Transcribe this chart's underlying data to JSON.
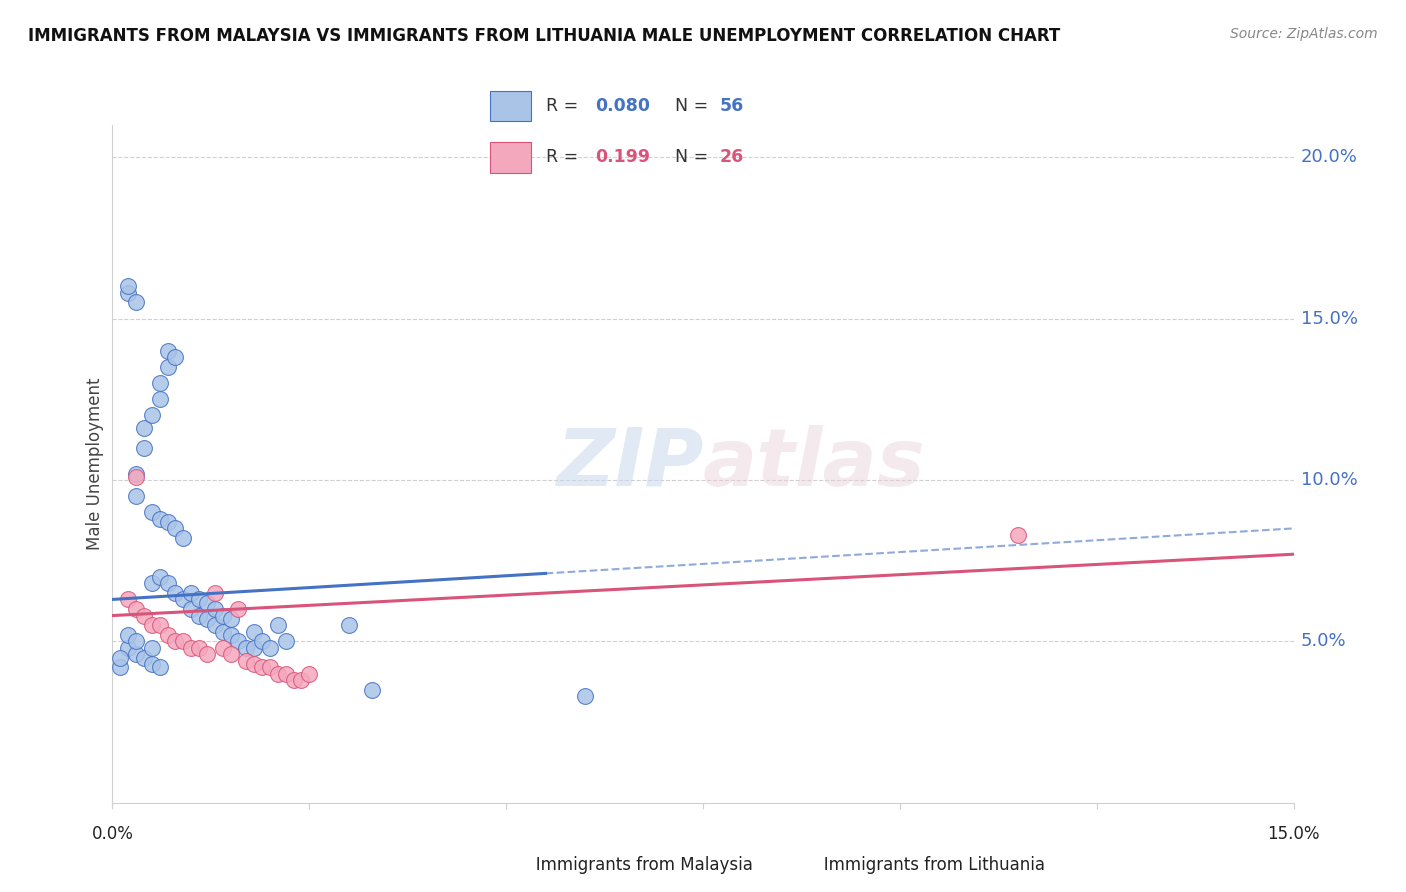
{
  "title": "IMMIGRANTS FROM MALAYSIA VS IMMIGRANTS FROM LITHUANIA MALE UNEMPLOYMENT CORRELATION CHART",
  "source": "Source: ZipAtlas.com",
  "ylabel": "Male Unemployment",
  "xlim": [
    0.0,
    0.15
  ],
  "ylim": [
    0.0,
    0.21
  ],
  "watermark": "ZIPatlas",
  "malaysia_R": "0.080",
  "malaysia_N": "56",
  "lithuania_R": "0.199",
  "lithuania_N": "26",
  "malaysia_color": "#aac4e8",
  "malaysia_line_color": "#4472c4",
  "lithuania_color": "#f4a8be",
  "lithuania_line_color": "#d9547a",
  "malaysia_scatter_x": [
    0.005,
    0.006,
    0.007,
    0.008,
    0.009,
    0.01,
    0.01,
    0.011,
    0.011,
    0.012,
    0.012,
    0.013,
    0.013,
    0.014,
    0.014,
    0.015,
    0.015,
    0.016,
    0.017,
    0.018,
    0.018,
    0.019,
    0.02,
    0.021,
    0.022,
    0.005,
    0.006,
    0.007,
    0.008,
    0.009,
    0.003,
    0.003,
    0.004,
    0.004,
    0.005,
    0.006,
    0.006,
    0.007,
    0.007,
    0.008,
    0.002,
    0.002,
    0.003,
    0.003,
    0.004,
    0.005,
    0.005,
    0.006,
    0.001,
    0.001,
    0.03,
    0.033,
    0.06,
    0.002,
    0.002,
    0.003
  ],
  "malaysia_scatter_y": [
    0.068,
    0.07,
    0.068,
    0.065,
    0.063,
    0.06,
    0.065,
    0.058,
    0.063,
    0.057,
    0.062,
    0.055,
    0.06,
    0.053,
    0.058,
    0.052,
    0.057,
    0.05,
    0.048,
    0.048,
    0.053,
    0.05,
    0.048,
    0.055,
    0.05,
    0.09,
    0.088,
    0.087,
    0.085,
    0.082,
    0.095,
    0.102,
    0.11,
    0.116,
    0.12,
    0.125,
    0.13,
    0.135,
    0.14,
    0.138,
    0.048,
    0.052,
    0.046,
    0.05,
    0.045,
    0.043,
    0.048,
    0.042,
    0.042,
    0.045,
    0.055,
    0.035,
    0.033,
    0.158,
    0.16,
    0.155
  ],
  "lithuania_scatter_x": [
    0.002,
    0.003,
    0.004,
    0.005,
    0.006,
    0.007,
    0.008,
    0.009,
    0.01,
    0.011,
    0.012,
    0.013,
    0.014,
    0.015,
    0.016,
    0.017,
    0.018,
    0.019,
    0.02,
    0.021,
    0.022,
    0.023,
    0.024,
    0.025,
    0.115,
    0.003
  ],
  "lithuania_scatter_y": [
    0.063,
    0.06,
    0.058,
    0.055,
    0.055,
    0.052,
    0.05,
    0.05,
    0.048,
    0.048,
    0.046,
    0.065,
    0.048,
    0.046,
    0.06,
    0.044,
    0.043,
    0.042,
    0.042,
    0.04,
    0.04,
    0.038,
    0.038,
    0.04,
    0.083,
    0.101
  ],
  "malaysia_trend_start_x": 0.0,
  "malaysia_trend_end_solid_x": 0.055,
  "malaysia_trend_end_x": 0.15,
  "malaysia_trend_start_y": 0.063,
  "malaysia_trend_end_y": 0.085,
  "lithuania_trend_start_x": 0.0,
  "lithuania_trend_end_x": 0.15,
  "lithuania_trend_start_y": 0.058,
  "lithuania_trend_end_y": 0.077,
  "right_ytick_vals": [
    0.05,
    0.1,
    0.15,
    0.2
  ],
  "right_ytick_labels": [
    "5.0%",
    "10.0%",
    "15.0%",
    "20.0%"
  ],
  "xtick_vals": [
    0.0,
    0.025,
    0.05,
    0.075,
    0.1,
    0.125,
    0.15
  ],
  "background_color": "#ffffff",
  "grid_color": "#d0d0d0"
}
